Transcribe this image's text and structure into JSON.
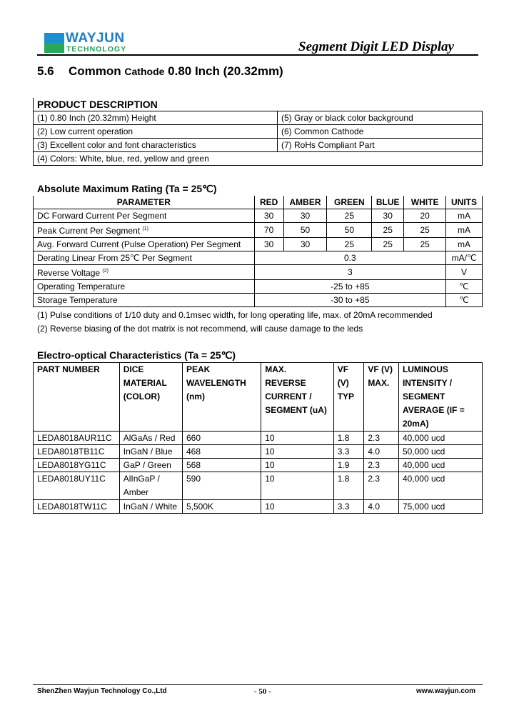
{
  "header": {
    "logo_text": "WAYJUN",
    "logo_subtext": "TECHNOLOGY",
    "doc_title": "Segment Digit LED Display",
    "brand_colors": {
      "blue": "#1c7fc4",
      "green": "#1fa055"
    }
  },
  "section": {
    "number": "5.6",
    "title_a": "Common",
    "title_b": "Cathode",
    "title_c": "0.80 Inch (20.32mm)"
  },
  "product_description": {
    "heading": "PRODUCT DESCRIPTION",
    "rows": [
      [
        "(1) 0.80 Inch (20.32mm) Height",
        "(5) Gray or black color background"
      ],
      [
        "(2) Low current operation",
        "(6) Common Cathode"
      ],
      [
        "(3) Excellent color and font characteristics",
        "(7) RoHs Compliant Part"
      ],
      [
        "(4) Colors: White, blue, red, yellow and green",
        ""
      ]
    ]
  },
  "abs_max": {
    "heading": "Absolute Maximum Rating (Ta = 25℃)",
    "columns": [
      "PARAMETER",
      "RED",
      "AMBER",
      "GREEN",
      "BLUE",
      "WHITE",
      "UNITS"
    ],
    "rows": [
      {
        "param": "DC Forward Current Per Segment",
        "sup": "",
        "values": [
          "30",
          "30",
          "25",
          "30",
          "20"
        ],
        "unit": "mA"
      },
      {
        "param": "Peak Current Per Segment",
        "sup": "(1)",
        "values": [
          "70",
          "50",
          "50",
          "25",
          "25"
        ],
        "unit": "mA"
      },
      {
        "param": "Avg. Forward Current (Pulse Operation) Per Segment",
        "sup": "",
        "values": [
          "30",
          "30",
          "25",
          "25",
          "25"
        ],
        "unit": "mA"
      }
    ],
    "merged_rows": [
      {
        "param": "Derating Linear From 25℃  Per Segment",
        "sup": "",
        "value": "0.3",
        "unit": "mA/℃"
      },
      {
        "param": "Reverse Voltage",
        "sup": "(2)",
        "value": "3",
        "unit": "V"
      },
      {
        "param": "Operating Temperature",
        "sup": "",
        "value": "-25 to +85",
        "unit": "℃"
      },
      {
        "param": "Storage Temperature",
        "sup": "",
        "value": "-30 to +85",
        "unit": "℃"
      }
    ],
    "notes": [
      "(1) Pulse conditions of 1/10 duty and 0.1msec width, for long operating life, max. of 20mA recommended",
      "(2) Reverse biasing of the dot matrix is not recommend, will cause damage to the leds"
    ]
  },
  "electro_optical": {
    "heading": "Electro-optical Characteristics (Ta = 25℃)",
    "columns": [
      [
        "PART NUMBER"
      ],
      [
        "DICE",
        "MATERIAL",
        "(COLOR)"
      ],
      [
        "PEAK",
        "WAVELENGTH",
        "(nm)"
      ],
      [
        "MAX.",
        "REVERSE",
        "CURRENT /",
        "SEGMENT (uA)"
      ],
      [
        "VF",
        "(V)",
        "TYP"
      ],
      [
        "VF (V)",
        "MAX."
      ],
      [
        "LUMINOUS",
        "INTENSITY /",
        "SEGMENT",
        "AVERAGE (IF =",
        "20mA)"
      ]
    ],
    "rows": [
      [
        "LEDA8018AUR11C",
        "AlGaAs / Red",
        "660",
        "10",
        "1.8",
        "2.3",
        "40,000 ucd"
      ],
      [
        "LEDA8018TB11C",
        "InGaN / Blue",
        "468",
        "10",
        "3.3",
        "4.0",
        "50,000 ucd"
      ],
      [
        "LEDA8018YG11C",
        "GaP / Green",
        "568",
        "10",
        "1.9",
        "2.3",
        "40,000 ucd"
      ],
      [
        "LEDA8018UY11C",
        "AlInGaP / Amber",
        "590",
        "10",
        "1.8",
        "2.3",
        "40,000 ucd"
      ],
      [
        "LEDA8018TW11C",
        "InGaN / White",
        "5,500K",
        "10",
        "3.3",
        "4.0",
        "75,000 ucd"
      ]
    ]
  },
  "footer": {
    "company": "ShenZhen Wayjun Technology Co.,Ltd",
    "page": "- 50 -",
    "website": "www.wayjun.com"
  }
}
